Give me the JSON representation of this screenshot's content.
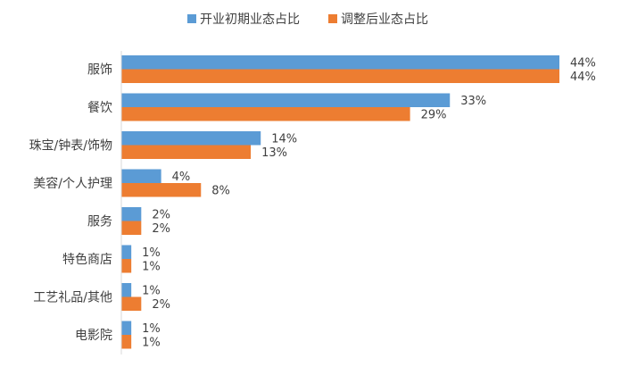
{
  "chart_data": {
    "type": "bar",
    "orientation": "horizontal",
    "categories": [
      "服饰",
      "餐饮",
      "珠宝/钟表/饰物",
      "美容/个人护理",
      "服务",
      "特色商店",
      "工艺礼品/其他",
      "电影院"
    ],
    "series": [
      {
        "name": "开业初期业态占比",
        "color": "#5B9BD5",
        "values": [
          44,
          33,
          14,
          4,
          2,
          1,
          1,
          1
        ]
      },
      {
        "name": "调整后业态占比",
        "color": "#ED7D31",
        "values": [
          44,
          29,
          13,
          8,
          2,
          1,
          2,
          1
        ]
      }
    ],
    "value_format": "percent",
    "value_suffix": "%",
    "xlim": [
      0,
      52
    ],
    "legend_position": "top",
    "grid": false,
    "x_axis_visible": false
  }
}
